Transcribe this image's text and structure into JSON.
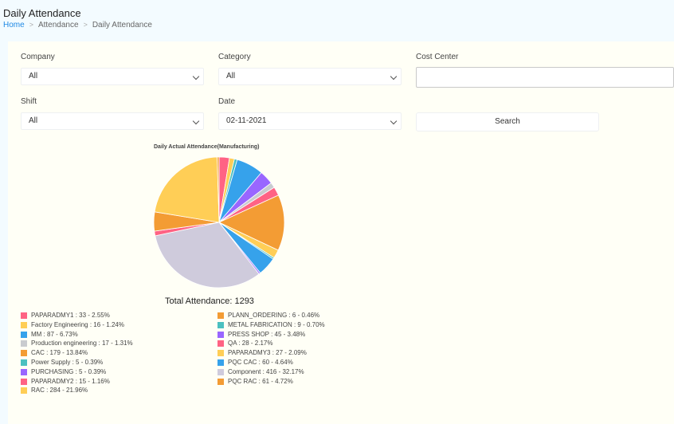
{
  "header": {
    "title": "Daily Attendance",
    "breadcrumb": {
      "home": "Home",
      "section": "Attendance",
      "current": "Daily Attendance"
    }
  },
  "filters": {
    "company": {
      "label": "Company",
      "value": "All"
    },
    "category": {
      "label": "Category",
      "value": "All"
    },
    "cost_center": {
      "label": "Cost Center",
      "value": ""
    },
    "shift": {
      "label": "Shift",
      "value": "All"
    },
    "date": {
      "label": "Date",
      "value": "02-11-2021"
    },
    "search_label": "Search"
  },
  "chart_data": {
    "type": "pie",
    "title": "Daily Actual Attendance(Manufacturing)",
    "total_label": "Total Attendance: 1293",
    "legend_position": "bottom",
    "slices": [
      {
        "name": "PAPARADMY1",
        "value": 33,
        "label": "PAPARADMY1 : 33 - 2.55%",
        "color": "#ff6384"
      },
      {
        "name": "Factory Engineering",
        "value": 16,
        "label": "Factory Engineering : 16 - 1.24%",
        "color": "#ffce56"
      },
      {
        "name": "METAL FABRICATION",
        "value": 9,
        "label": "METAL FABRICATION : 9 - 0.70%",
        "color": "#4bc0c0"
      },
      {
        "name": "MM",
        "value": 87,
        "label": "MM : 87 - 6.73%",
        "color": "#36a2eb"
      },
      {
        "name": "PRESS SHOP",
        "value": 45,
        "label": "PRESS SHOP : 45 - 3.48%",
        "color": "#9966ff"
      },
      {
        "name": "Production engineering",
        "value": 17,
        "label": "Production engineering : 17 - 1.31%",
        "color": "#c9cbcf"
      },
      {
        "name": "QA",
        "value": 28,
        "label": "QA : 28 - 2.17%",
        "color": "#ff6384"
      },
      {
        "name": "CAC",
        "value": 179,
        "label": "CAC : 179 - 13.84%",
        "color": "#f39c34"
      },
      {
        "name": "PAPARADMY3",
        "value": 27,
        "label": "PAPARADMY3 : 27 - 2.09%",
        "color": "#ffce56"
      },
      {
        "name": "Power Supply",
        "value": 5,
        "label": "Power Supply : 5 - 0.39%",
        "color": "#4bc0c0"
      },
      {
        "name": "PQC CAC",
        "value": 60,
        "label": "PQC CAC : 60 - 4.64%",
        "color": "#36a2eb"
      },
      {
        "name": "PURCHASING",
        "value": 5,
        "label": "PURCHASING : 5 - 0.39%",
        "color": "#9966ff"
      },
      {
        "name": "Component",
        "value": 416,
        "label": "Component : 416 - 32.17%",
        "color": "#cfcbdc"
      },
      {
        "name": "PAPARADMY2",
        "value": 15,
        "label": "PAPARADMY2 : 15 - 1.16%",
        "color": "#ff6384"
      },
      {
        "name": "PQC RAC",
        "value": 61,
        "label": "PQC RAC : 61 - 4.72%",
        "color": "#f39c34"
      },
      {
        "name": "RAC",
        "value": 284,
        "label": "RAC : 284 - 21.96%",
        "color": "#ffce56"
      },
      {
        "name": "PLANN_ORDERING",
        "value": 6,
        "label": "PLANN_ORDERING : 6 - 0.46%",
        "color": "#f39c34"
      }
    ],
    "legend_left": [
      {
        "label": "PAPARADMY1 : 33 - 2.55%",
        "color": "#ff6384"
      },
      {
        "label": "Factory Engineering : 16 - 1.24%",
        "color": "#ffce56"
      },
      {
        "label": "MM : 87 - 6.73%",
        "color": "#36a2eb"
      },
      {
        "label": "Production engineering : 17 - 1.31%",
        "color": "#c9cbcf"
      },
      {
        "label": "CAC : 179 - 13.84%",
        "color": "#f39c34"
      },
      {
        "label": "Power Supply : 5 - 0.39%",
        "color": "#4bc0c0"
      },
      {
        "label": "PURCHASING : 5 - 0.39%",
        "color": "#9966ff"
      },
      {
        "label": "PAPARADMY2 : 15 - 1.16%",
        "color": "#ff6384"
      },
      {
        "label": "RAC : 284 - 21.96%",
        "color": "#ffce56"
      }
    ],
    "legend_right": [
      {
        "label": "PLANN_ORDERING : 6 - 0.46%",
        "color": "#f39c34"
      },
      {
        "label": "METAL FABRICATION : 9 - 0.70%",
        "color": "#4bc0c0"
      },
      {
        "label": "PRESS SHOP : 45 - 3.48%",
        "color": "#9966ff"
      },
      {
        "label": "QA : 28 - 2.17%",
        "color": "#ff6384"
      },
      {
        "label": "PAPARADMY3 : 27 - 2.09%",
        "color": "#ffce56"
      },
      {
        "label": "PQC CAC : 60 - 4.64%",
        "color": "#36a2eb"
      },
      {
        "label": "Component : 416 - 32.17%",
        "color": "#cfcbdc"
      },
      {
        "label": "PQC RAC : 61 - 4.72%",
        "color": "#f39c34"
      }
    ]
  }
}
